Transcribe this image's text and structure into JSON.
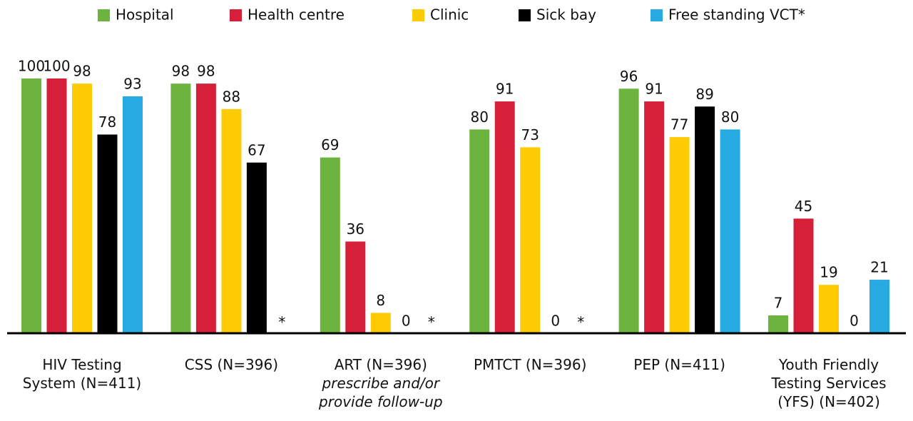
{
  "chart_data": {
    "type": "bar",
    "categories": [
      "HIV Testing System (N=411)",
      "CSS (N=396)",
      "ART (N=396)",
      "PMTCT (N=396)",
      "PEP (N=411)",
      "Youth Friendly Testing Services (YFS) (N=402)"
    ],
    "annotations": [
      "prescribe and/or provide follow-up"
    ],
    "series": [
      {
        "name": "Hospital",
        "color": "#6db33f",
        "values": [
          100,
          98,
          69,
          80,
          96,
          7
        ]
      },
      {
        "name": "Health centre",
        "color": "#d6203a",
        "values": [
          100,
          98,
          36,
          91,
          91,
          45
        ]
      },
      {
        "name": "Clinic",
        "color": "#ffcb05",
        "values": [
          98,
          88,
          8,
          73,
          77,
          19
        ]
      },
      {
        "name": "Sick bay",
        "color": "#000000",
        "values": [
          78,
          67,
          0,
          0,
          89,
          0
        ]
      },
      {
        "name": "Free standing VCT*",
        "color": "#27aae1",
        "values": [
          93,
          null,
          null,
          null,
          80,
          21
        ],
        "value_labels": [
          "93",
          "*",
          "*",
          "*",
          "80",
          "21"
        ]
      }
    ],
    "ylim": [
      0,
      100
    ],
    "grid": false,
    "legend": "top"
  }
}
